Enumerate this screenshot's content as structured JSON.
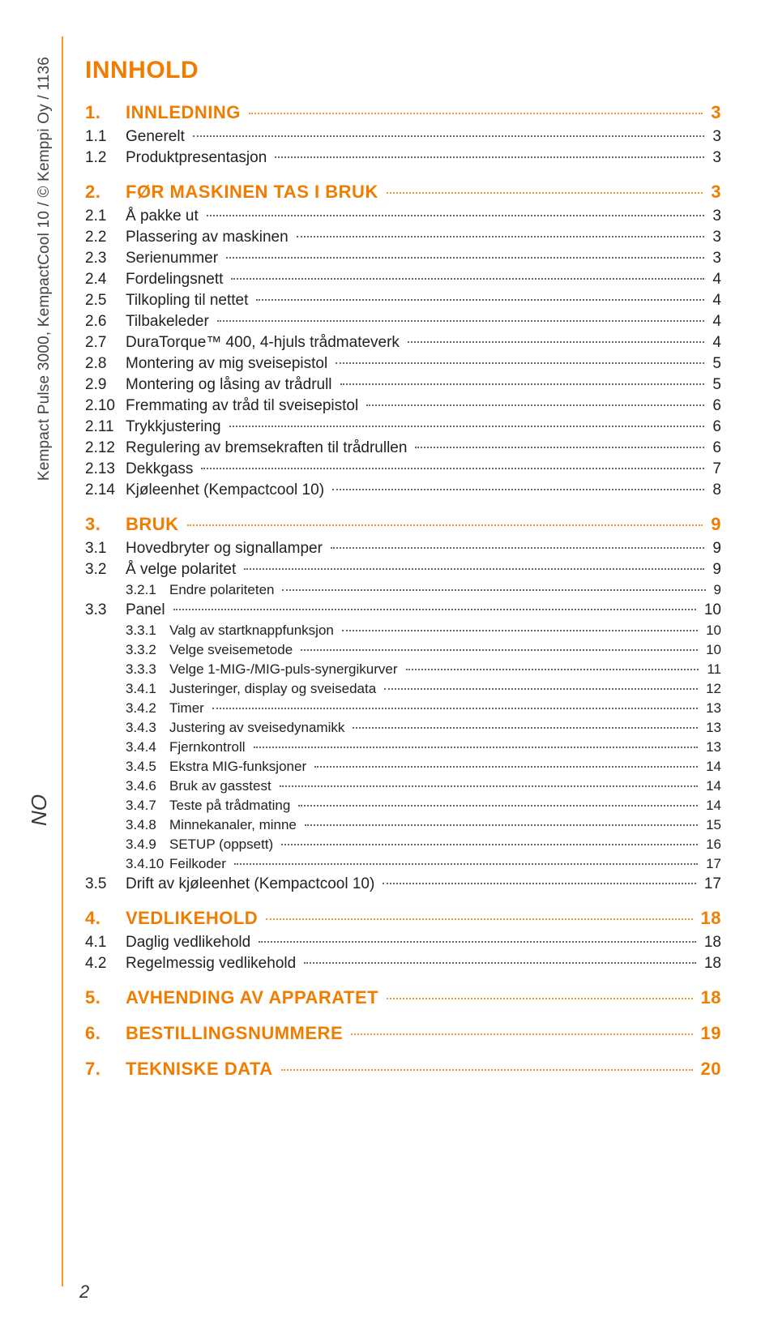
{
  "doc_sideways": "Kempact Pulse 3000, KempactCool 10 / © Kemppi Oy / 1136",
  "lang_badge": "NO",
  "heading": "INNHOLD",
  "page_number": "2",
  "colors": {
    "accent": "#f07d00",
    "rail": "#f29a23",
    "text": "#222222",
    "dots": "#666666"
  },
  "fonts": {
    "body_size_pt": 14,
    "h1_size_pt": 22,
    "l1_size_pt": 16,
    "l3_size_pt": 13
  },
  "toc": [
    {
      "lvl": 1,
      "num": "1.",
      "label": "INNLEDNING",
      "pg": "3"
    },
    {
      "lvl": 2,
      "num": "1.1",
      "label": "Generelt",
      "pg": "3"
    },
    {
      "lvl": 2,
      "num": "1.2",
      "label": "Produktpresentasjon",
      "pg": "3"
    },
    {
      "lvl": 1,
      "num": "2.",
      "label": "FØR MASKINEN TAS I BRUK",
      "pg": "3"
    },
    {
      "lvl": 2,
      "num": "2.1",
      "label": "Å pakke ut",
      "pg": "3"
    },
    {
      "lvl": 2,
      "num": "2.2",
      "label": "Plassering av maskinen",
      "pg": "3"
    },
    {
      "lvl": 2,
      "num": "2.3",
      "label": "Serienummer",
      "pg": "3"
    },
    {
      "lvl": 2,
      "num": "2.4",
      "label": "Fordelingsnett",
      "pg": "4"
    },
    {
      "lvl": 2,
      "num": "2.5",
      "label": "Tilkopling til nettet",
      "pg": "4"
    },
    {
      "lvl": 2,
      "num": "2.6",
      "label": "Tilbakeleder",
      "pg": "4"
    },
    {
      "lvl": 2,
      "num": "2.7",
      "label": "DuraTorque™ 400, 4-hjuls trådmateverk",
      "pg": "4"
    },
    {
      "lvl": 2,
      "num": "2.8",
      "label": "Montering av mig sveisepistol",
      "pg": "5"
    },
    {
      "lvl": 2,
      "num": "2.9",
      "label": "Montering og låsing av trådrull",
      "pg": "5"
    },
    {
      "lvl": 2,
      "num": "2.10",
      "label": "Fremmating av tråd til sveisepistol",
      "pg": "6"
    },
    {
      "lvl": 2,
      "num": "2.11",
      "label": "Trykkjustering",
      "pg": "6"
    },
    {
      "lvl": 2,
      "num": "2.12",
      "label": "Regulering av bremsekraften til trådrullen",
      "pg": "6"
    },
    {
      "lvl": 2,
      "num": "2.13",
      "label": "Dekkgass",
      "pg": "7"
    },
    {
      "lvl": 2,
      "num": "2.14",
      "label": "Kjøleenhet (Kempactcool 10)",
      "pg": "8"
    },
    {
      "lvl": 1,
      "num": "3.",
      "label": "BRUK",
      "pg": "9"
    },
    {
      "lvl": 2,
      "num": "3.1",
      "label": "Hovedbryter og signallamper",
      "pg": "9"
    },
    {
      "lvl": 2,
      "num": "3.2",
      "label": "Å velge polaritet",
      "pg": "9"
    },
    {
      "lvl": 3,
      "num": "3.2.1",
      "label": "Endre polariteten",
      "pg": "9"
    },
    {
      "lvl": 2,
      "num": "3.3",
      "label": "Panel",
      "pg": "10"
    },
    {
      "lvl": 3,
      "num": "3.3.1",
      "label": "Valg av startknappfunksjon",
      "pg": "10"
    },
    {
      "lvl": 3,
      "num": "3.3.2",
      "label": "Velge sveisemetode",
      "pg": "10"
    },
    {
      "lvl": 3,
      "num": "3.3.3",
      "label": "Velge 1-MIG-/MIG-puls-synergikurver",
      "pg": "11"
    },
    {
      "lvl": 3,
      "num": "3.4.1",
      "label": "Justeringer, display og sveisedata",
      "pg": "12"
    },
    {
      "lvl": 3,
      "num": "3.4.2",
      "label": "Timer",
      "pg": "13"
    },
    {
      "lvl": 3,
      "num": "3.4.3",
      "label": "Justering av sveisedynamikk",
      "pg": "13"
    },
    {
      "lvl": 3,
      "num": "3.4.4",
      "label": "Fjernkontroll",
      "pg": "13"
    },
    {
      "lvl": 3,
      "num": "3.4.5",
      "label": "Ekstra MIG-funksjoner",
      "pg": "14"
    },
    {
      "lvl": 3,
      "num": "3.4.6",
      "label": "Bruk av gasstest",
      "pg": "14"
    },
    {
      "lvl": 3,
      "num": "3.4.7",
      "label": "Teste på trådmating",
      "pg": "14"
    },
    {
      "lvl": 3,
      "num": "3.4.8",
      "label": "Minnekanaler, minne",
      "pg": "15"
    },
    {
      "lvl": 3,
      "num": "3.4.9",
      "label": "SETUP (oppsett)",
      "pg": "16"
    },
    {
      "lvl": 3,
      "num": "3.4.10",
      "label": "Feilkoder",
      "pg": "17"
    },
    {
      "lvl": 2,
      "num": "3.5",
      "label": "Drift av kjøleenhet (Kempactcool 10)",
      "pg": "17"
    },
    {
      "lvl": 1,
      "num": "4.",
      "label": "VEDLIKEHOLD",
      "pg": "18"
    },
    {
      "lvl": 2,
      "num": "4.1",
      "label": "Daglig vedlikehold",
      "pg": "18"
    },
    {
      "lvl": 2,
      "num": "4.2",
      "label": "Regelmessig vedlikehold",
      "pg": "18"
    },
    {
      "lvl": 1,
      "num": "5.",
      "label": "AVHENDING AV APPARATET",
      "pg": "18"
    },
    {
      "lvl": 1,
      "num": "6.",
      "label": "BESTILLINGSNUMMERE",
      "pg": "19"
    },
    {
      "lvl": 1,
      "num": "7.",
      "label": "TEKNISKE DATA",
      "pg": "20"
    }
  ]
}
